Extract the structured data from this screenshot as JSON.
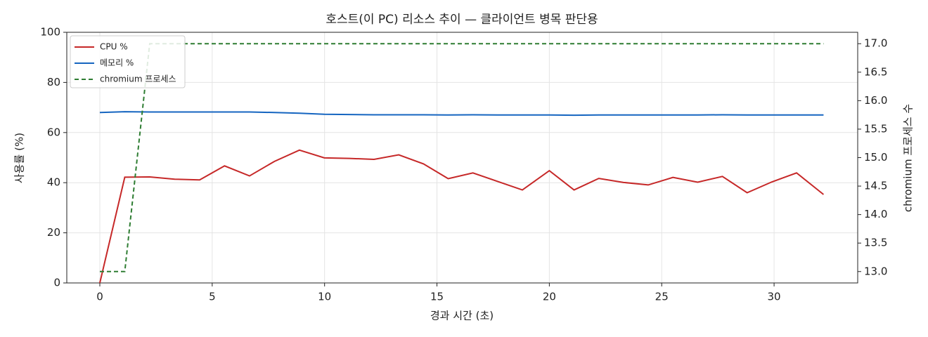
{
  "chart_data": {
    "type": "line",
    "title": "호스트(이 PC) 리소스 추이 — 클라이언트 병목 판단용",
    "xlabel": "경과 시간 (초)",
    "ylabel": "사용률 (%)",
    "y2label": "chromium 프로세스 수",
    "x": [
      0,
      1.11,
      2.22,
      3.33,
      4.44,
      5.55,
      6.66,
      7.77,
      8.88,
      9.99,
      11.1,
      12.2,
      13.3,
      14.4,
      15.5,
      16.6,
      17.7,
      18.8,
      20.0,
      21.1,
      22.2,
      23.3,
      24.4,
      25.5,
      26.6,
      27.7,
      28.8,
      29.9,
      31.0,
      32.2
    ],
    "series": [
      {
        "name": "CPU %",
        "color": "#c62828",
        "dash": false,
        "axis": "y",
        "values": [
          0,
          42.2,
          42.3,
          41.4,
          41.1,
          46.7,
          42.7,
          48.5,
          53,
          49.9,
          49.7,
          49.3,
          51.1,
          47.5,
          41.6,
          43.9,
          40.5,
          37.1,
          44.8,
          37.1,
          41.7,
          40.1,
          39.1,
          42.1,
          40.2,
          42.5,
          36,
          40.3,
          43.9,
          35.3
        ]
      },
      {
        "name": "메모리 %",
        "color": "#1565c0",
        "dash": false,
        "axis": "y",
        "values": [
          68,
          68.3,
          68.2,
          68.2,
          68.2,
          68.2,
          68.2,
          68.0,
          67.7,
          67.3,
          67.2,
          67.1,
          67.1,
          67.1,
          67.0,
          67.1,
          67.0,
          67.0,
          67.0,
          66.9,
          67.0,
          67.0,
          67.0,
          67.0,
          67.0,
          67.1,
          67.0,
          67.0,
          67.0,
          67.0
        ]
      },
      {
        "name": "chromium 프로세스",
        "color": "#2e7d32",
        "dash": true,
        "axis": "y2",
        "values": [
          13,
          13,
          17,
          17,
          17,
          17,
          17,
          17,
          17,
          17,
          17,
          17,
          17,
          17,
          17,
          17,
          17,
          17,
          17,
          17,
          17,
          17,
          17,
          17,
          17,
          17,
          17,
          17,
          17,
          17
        ]
      }
    ],
    "xlim": [
      -1.47,
      33.72
    ],
    "xticks": [
      0,
      5,
      10,
      15,
      20,
      25,
      30
    ],
    "ylim": [
      0,
      100
    ],
    "yticks": [
      0,
      20,
      40,
      60,
      80,
      100
    ],
    "y2lim": [
      12.8,
      17.2
    ],
    "y2ticks": [
      {
        "value": 13,
        "label": "13.0"
      },
      13.5,
      {
        "value": 14,
        "label": "14.0"
      },
      14.5,
      {
        "value": 15,
        "label": "15.0"
      },
      15.5,
      {
        "value": 16,
        "label": "16.0"
      },
      16.5,
      {
        "value": 17,
        "label": "17.0"
      }
    ],
    "grid": true,
    "legend": "upper left"
  }
}
